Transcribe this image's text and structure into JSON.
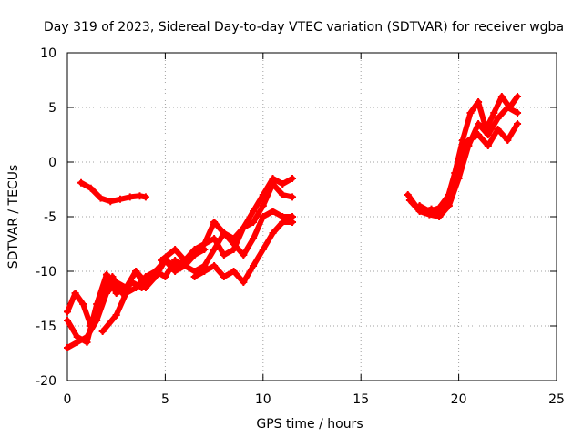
{
  "chart_data": {
    "type": "scatter",
    "title": "Day 319 of 2023, Sidereal Day-to-day VTEC variation (SDTVAR) for receiver wgba",
    "xlabel": "GPS time / hours",
    "ylabel": "SDTVAR / TECUs",
    "xlim": [
      0,
      25
    ],
    "ylim": [
      -20,
      10
    ],
    "x_ticks": [
      0,
      5,
      10,
      15,
      20,
      25
    ],
    "y_ticks": [
      -20,
      -15,
      -10,
      -5,
      0,
      5,
      10
    ],
    "x_tick_labels": [
      "0",
      "5",
      "10",
      "15",
      "20",
      "25"
    ],
    "y_tick_labels": [
      "-20",
      "-15",
      "-10",
      "-5",
      "0",
      "5",
      "10"
    ],
    "grid": true,
    "marker": "+",
    "series": [
      {
        "name": "track-1",
        "color": "#ff0000",
        "x": [
          0.0,
          0.4,
          0.8,
          1.2,
          1.8,
          2.3,
          2.8,
          3.3,
          3.8,
          4.3
        ],
        "y": [
          -13.7,
          -12.0,
          -13.0,
          -15.0,
          -12.0,
          -10.5,
          -12.0,
          -11.0,
          -11.5,
          -10.5
        ]
      },
      {
        "name": "track-2",
        "color": "#ff0000",
        "x": [
          0.0,
          0.5,
          1.0,
          1.5,
          2.0,
          2.5,
          3.0,
          3.5,
          4.0,
          4.5,
          5.0,
          5.5,
          6.0,
          6.5,
          7.0
        ],
        "y": [
          -14.5,
          -16.0,
          -16.5,
          -13.0,
          -10.3,
          -12.0,
          -11.5,
          -10.0,
          -11.0,
          -10.0,
          -9.0,
          -10.0,
          -9.5,
          -8.5,
          -8.0
        ]
      },
      {
        "name": "track-3",
        "color": "#ff0000",
        "x": [
          0.0,
          0.5,
          1.0,
          1.5,
          2.0,
          2.5,
          3.0,
          3.5,
          4.0,
          4.5,
          5.0,
          5.5,
          6.0,
          6.5,
          7.0,
          7.5,
          8.0,
          8.5,
          9.0,
          9.5,
          10.0,
          10.5,
          11.0,
          11.5
        ],
        "y": [
          -17.0,
          -16.5,
          -16.0,
          -14.5,
          -12.0,
          -11.0,
          -11.5,
          -10.0,
          -11.5,
          -10.5,
          -9.0,
          -9.5,
          -9.0,
          -8.5,
          -7.5,
          -7.0,
          -8.5,
          -8.0,
          -6.0,
          -4.5,
          -3.0,
          -1.5,
          -2.0,
          -1.5
        ]
      },
      {
        "name": "track-4",
        "color": "#ff0000",
        "x": [
          1.8,
          2.5,
          3.0,
          3.5,
          4.0,
          4.5,
          5.0,
          5.5,
          6.0,
          6.5,
          7.0,
          7.5,
          8.0,
          8.5,
          9.0,
          9.5,
          10.0,
          10.5,
          11.0,
          11.5
        ],
        "y": [
          -15.5,
          -14.0,
          -12.0,
          -11.5,
          -10.5,
          -10.0,
          -10.5,
          -9.0,
          -9.5,
          -10.0,
          -9.5,
          -8.0,
          -6.5,
          -7.0,
          -6.0,
          -5.5,
          -4.0,
          -2.0,
          -3.0,
          -3.2
        ]
      },
      {
        "name": "track-5",
        "color": "#ff0000",
        "x": [
          4.8,
          5.5,
          6.0,
          6.5,
          7.0,
          7.5,
          8.0,
          8.5,
          9.0,
          9.5,
          10.0,
          10.5,
          11.0,
          11.5
        ],
        "y": [
          -9.0,
          -8.0,
          -9.0,
          -8.0,
          -7.5,
          -5.5,
          -6.5,
          -7.5,
          -8.5,
          -7.0,
          -5.0,
          -4.5,
          -5.0,
          -5.0
        ]
      },
      {
        "name": "track-6",
        "color": "#ff0000",
        "x": [
          6.5,
          7.0,
          7.5,
          8.0,
          8.5,
          9.0,
          9.5,
          10.0,
          10.5,
          11.0,
          11.5
        ],
        "y": [
          -10.5,
          -10.0,
          -9.5,
          -10.5,
          -10.0,
          -11.0,
          -9.5,
          -8.0,
          -6.5,
          -5.5,
          -5.5
        ]
      },
      {
        "name": "track-7",
        "color": "#ff0000",
        "x": [
          0.7,
          1.2,
          1.7,
          2.2,
          2.7,
          3.2,
          3.7,
          4.0
        ],
        "y": [
          -1.9,
          -2.4,
          -3.3,
          -3.6,
          -3.4,
          -3.2,
          -3.1,
          -3.2
        ]
      },
      {
        "name": "track-8",
        "color": "#ff0000",
        "x": [
          17.4,
          17.8,
          18.2,
          18.6,
          19.0,
          19.4,
          19.8,
          20.2,
          20.6,
          21.0,
          21.4,
          21.8,
          22.2,
          22.6,
          23.0
        ],
        "y": [
          -3.0,
          -4.0,
          -4.5,
          -4.3,
          -4.6,
          -3.5,
          -1.0,
          2.0,
          4.5,
          5.5,
          3.0,
          4.5,
          6.0,
          5.0,
          6.0
        ]
      },
      {
        "name": "track-9",
        "color": "#ff0000",
        "x": [
          17.5,
          18.0,
          18.5,
          19.0,
          19.5,
          20.0,
          20.5,
          21.0,
          21.5,
          22.0,
          22.5,
          23.0
        ],
        "y": [
          -3.5,
          -4.5,
          -4.8,
          -5.0,
          -4.0,
          -1.5,
          1.5,
          3.5,
          2.5,
          4.0,
          5.0,
          4.5
        ]
      },
      {
        "name": "track-10",
        "color": "#ff0000",
        "x": [
          18.0,
          18.5,
          19.0,
          19.5,
          20.0,
          20.5,
          21.0,
          21.5,
          22.0,
          22.5,
          23.0
        ],
        "y": [
          -4.0,
          -4.5,
          -4.2,
          -3.0,
          -0.5,
          2.0,
          2.5,
          1.5,
          3.0,
          2.0,
          3.5
        ]
      }
    ]
  }
}
